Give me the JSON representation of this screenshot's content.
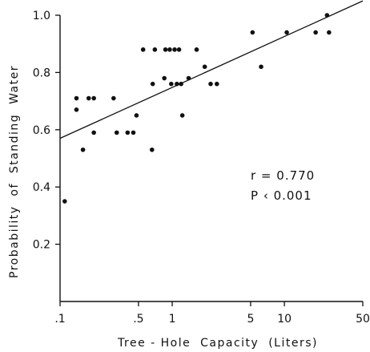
{
  "chart_data": {
    "type": "scatter",
    "title": "",
    "xlabel": "Tree - Hole  Capacity  (Liters)",
    "ylabel": "Probability  of  Standing  Water",
    "x_scale": "log",
    "xlim": [
      0.1,
      50
    ],
    "ylim": [
      0.0,
      1.0
    ],
    "x_ticks": [
      0.1,
      0.5,
      1,
      5,
      10,
      50
    ],
    "x_tick_labels": [
      ".1",
      ".5",
      "1",
      "5",
      "10",
      "50"
    ],
    "y_ticks": [
      0.2,
      0.4,
      0.6,
      0.8,
      1.0
    ],
    "y_tick_labels": [
      "0.2",
      "0.4",
      "0.6",
      "0.8",
      "1.0"
    ],
    "grid": false,
    "points": [
      {
        "x": 0.11,
        "y": 0.35
      },
      {
        "x": 0.14,
        "y": 0.67
      },
      {
        "x": 0.14,
        "y": 0.71
      },
      {
        "x": 0.16,
        "y": 0.53
      },
      {
        "x": 0.18,
        "y": 0.71
      },
      {
        "x": 0.2,
        "y": 0.71
      },
      {
        "x": 0.2,
        "y": 0.59
      },
      {
        "x": 0.3,
        "y": 0.71
      },
      {
        "x": 0.32,
        "y": 0.59
      },
      {
        "x": 0.4,
        "y": 0.59
      },
      {
        "x": 0.45,
        "y": 0.59
      },
      {
        "x": 0.48,
        "y": 0.65
      },
      {
        "x": 0.55,
        "y": 0.88
      },
      {
        "x": 0.66,
        "y": 0.53
      },
      {
        "x": 0.67,
        "y": 0.76
      },
      {
        "x": 0.7,
        "y": 0.88
      },
      {
        "x": 0.85,
        "y": 0.78
      },
      {
        "x": 0.87,
        "y": 0.88
      },
      {
        "x": 0.95,
        "y": 0.88
      },
      {
        "x": 0.98,
        "y": 0.76
      },
      {
        "x": 1.05,
        "y": 0.88
      },
      {
        "x": 1.1,
        "y": 0.76
      },
      {
        "x": 1.15,
        "y": 0.88
      },
      {
        "x": 1.2,
        "y": 0.76
      },
      {
        "x": 1.23,
        "y": 0.65
      },
      {
        "x": 1.4,
        "y": 0.78
      },
      {
        "x": 1.65,
        "y": 0.88
      },
      {
        "x": 1.95,
        "y": 0.82
      },
      {
        "x": 2.2,
        "y": 0.76
      },
      {
        "x": 2.5,
        "y": 0.76
      },
      {
        "x": 5.2,
        "y": 0.94
      },
      {
        "x": 6.2,
        "y": 0.82
      },
      {
        "x": 10.5,
        "y": 0.94
      },
      {
        "x": 19,
        "y": 0.94
      },
      {
        "x": 24,
        "y": 1.0
      },
      {
        "x": 25,
        "y": 0.94
      }
    ],
    "regression_line": {
      "x": [
        0.1,
        50
      ],
      "y": [
        0.57,
        1.05
      ]
    },
    "annotations": [
      "r = 0.770",
      "P ‹ 0.001"
    ]
  }
}
